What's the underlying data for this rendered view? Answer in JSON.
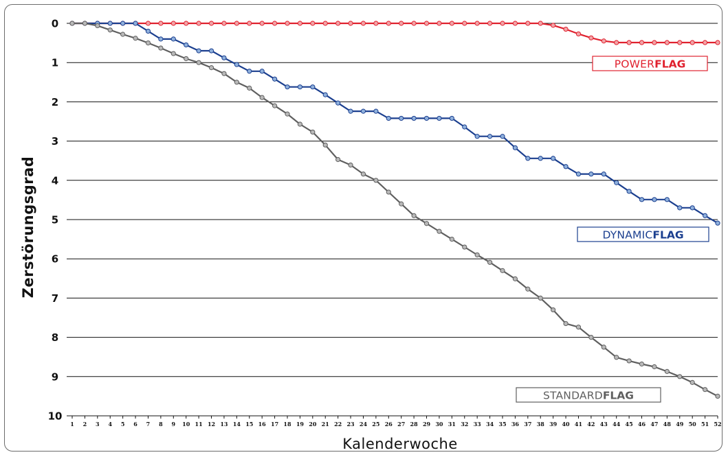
{
  "chart_data": {
    "type": "line",
    "xlabel": "Kalenderwoche",
    "ylabel": "Zerstörungsgrad",
    "ylim": [
      0,
      10
    ],
    "y_inverted": true,
    "y_ticks": [
      "0",
      "1",
      "2",
      "3",
      "4",
      "5",
      "6",
      "7",
      "8",
      "9",
      "10"
    ],
    "x_ticks": [
      "1",
      "2",
      "3",
      "4",
      "5",
      "6",
      "7",
      "8",
      "9",
      "10",
      "11",
      "12",
      "13",
      "14",
      "15",
      "16",
      "17",
      "18",
      "19",
      "20",
      "21",
      "22",
      "23",
      "24",
      "25",
      "26",
      "27",
      "28",
      "29",
      "30",
      "31",
      "32",
      "33",
      "34",
      "35",
      "36",
      "37",
      "38",
      "39",
      "40",
      "41",
      "42",
      "43",
      "44",
      "45",
      "46",
      "47",
      "48",
      "49",
      "50",
      "51",
      "52"
    ],
    "grid": "horizontal",
    "x": [
      1,
      2,
      3,
      4,
      5,
      6,
      7,
      8,
      9,
      10,
      11,
      12,
      13,
      14,
      15,
      16,
      17,
      18,
      19,
      20,
      21,
      22,
      23,
      24,
      25,
      26,
      27,
      28,
      29,
      30,
      31,
      32,
      33,
      34,
      35,
      36,
      37,
      38,
      39,
      40,
      41,
      42,
      43,
      44,
      45,
      46,
      47,
      48,
      49,
      50,
      51,
      52
    ],
    "series": [
      {
        "name_light": "POWER",
        "name_bold": "FLAG",
        "color": "#e0212e",
        "marker_fill": "#f2a3a7",
        "values": [
          0,
          0,
          0,
          0,
          0,
          0,
          0,
          0,
          0,
          0,
          0,
          0,
          0,
          0,
          0,
          0,
          0,
          0,
          0,
          0,
          0,
          0,
          0,
          0,
          0,
          0,
          0,
          0,
          0,
          0,
          0,
          0,
          0,
          0,
          0,
          0,
          0,
          0,
          0.05,
          0.15,
          0.27,
          0.37,
          0.45,
          0.49,
          0.49,
          0.49,
          0.49,
          0.49,
          0.49,
          0.49,
          0.49,
          0.49
        ]
      },
      {
        "name_light": "DYNAMIC",
        "name_bold": "FLAG",
        "color": "#1b3f8f",
        "marker_fill": "#8fb0dc",
        "values": [
          0,
          0,
          0,
          0,
          0,
          0,
          0.2,
          0.4,
          0.4,
          0.55,
          0.7,
          0.7,
          0.88,
          1.05,
          1.22,
          1.22,
          1.42,
          1.62,
          1.62,
          1.62,
          1.82,
          2.03,
          2.24,
          2.24,
          2.24,
          2.42,
          2.42,
          2.42,
          2.42,
          2.42,
          2.42,
          2.64,
          2.88,
          2.88,
          2.88,
          3.17,
          3.44,
          3.44,
          3.44,
          3.65,
          3.84,
          3.84,
          3.84,
          4.06,
          4.28,
          4.49,
          4.49,
          4.49,
          4.7,
          4.7,
          4.9,
          5.09
        ]
      },
      {
        "name_light": "STANDARD",
        "name_bold": "FLAG",
        "color": "#5f5f5f",
        "marker_fill": "#b9b9b9",
        "values": [
          0,
          0,
          0.06,
          0.17,
          0.28,
          0.38,
          0.5,
          0.63,
          0.77,
          0.9,
          1.0,
          1.13,
          1.28,
          1.5,
          1.65,
          1.89,
          2.1,
          2.31,
          2.57,
          2.77,
          3.1,
          3.47,
          3.61,
          3.84,
          4.0,
          4.3,
          4.6,
          4.9,
          5.1,
          5.3,
          5.5,
          5.7,
          5.9,
          6.09,
          6.3,
          6.51,
          6.77,
          7.0,
          7.3,
          7.65,
          7.74,
          8.0,
          8.25,
          8.51,
          8.6,
          8.68,
          8.75,
          8.87,
          9.0,
          9.15,
          9.33,
          9.5
        ]
      }
    ]
  }
}
